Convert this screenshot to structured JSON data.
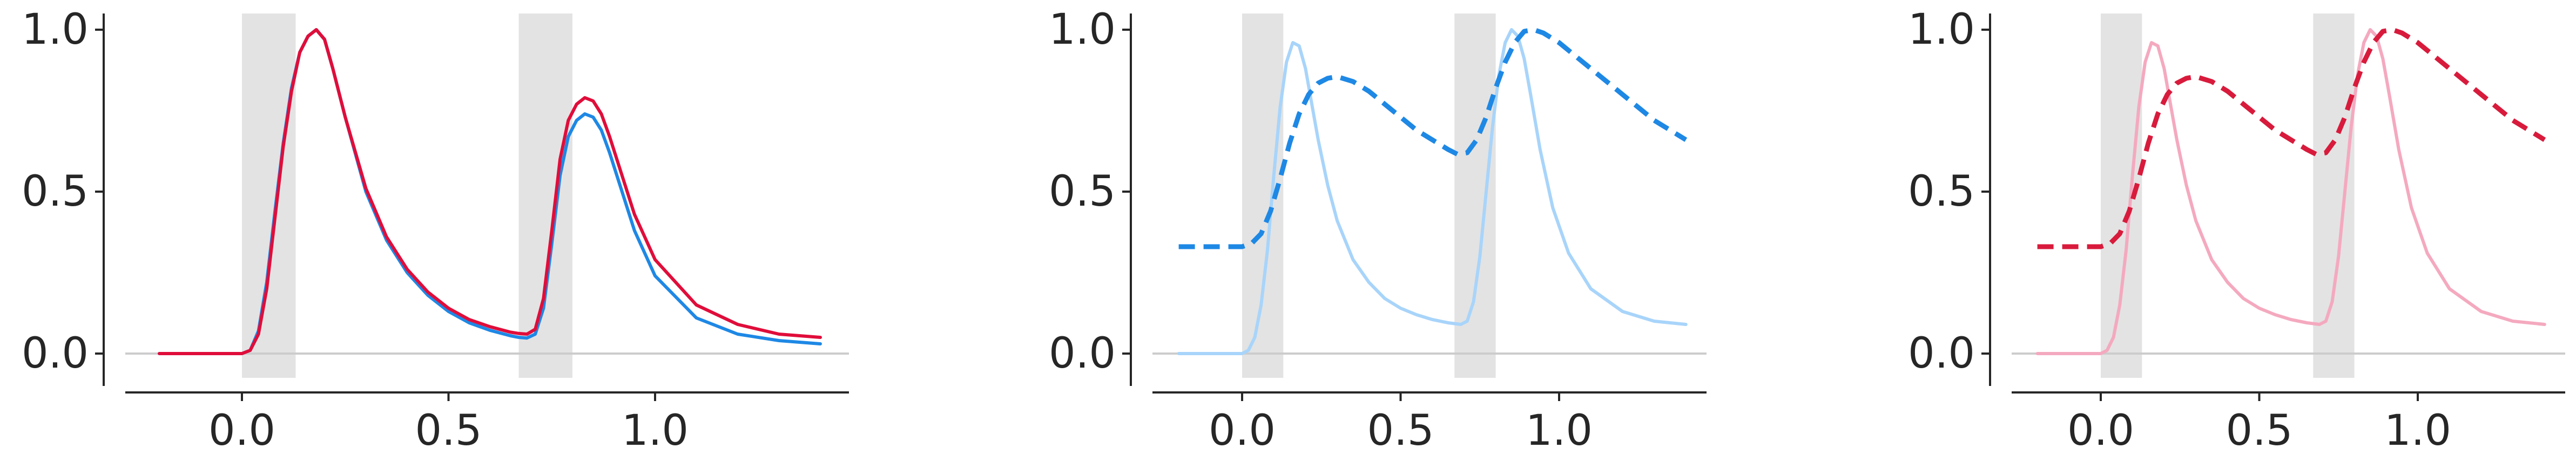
{
  "chart_data": [
    {
      "type": "line",
      "xlim": [
        -0.28,
        1.48
      ],
      "ylim": [
        -0.1,
        1.05
      ],
      "x_ticks": [
        "0.0",
        "0.5",
        "1.0"
      ],
      "y_ticks": [
        "0.0",
        "0.5",
        "1.0"
      ],
      "shaded_regions": [
        [
          0.0,
          0.13
        ],
        [
          0.67,
          0.8
        ]
      ],
      "series": [
        {
          "color": "#1e88e5",
          "style": "solid",
          "x": [
            -0.2,
            -0.1,
            0.0,
            0.02,
            0.04,
            0.06,
            0.08,
            0.1,
            0.12,
            0.14,
            0.16,
            0.18,
            0.2,
            0.22,
            0.25,
            0.3,
            0.35,
            0.4,
            0.45,
            0.5,
            0.55,
            0.6,
            0.65,
            0.67,
            0.69,
            0.71,
            0.73,
            0.75,
            0.77,
            0.79,
            0.81,
            0.83,
            0.85,
            0.87,
            0.89,
            0.92,
            0.95,
            1.0,
            1.1,
            1.2,
            1.3,
            1.4
          ],
          "y": [
            0,
            0,
            0,
            0.01,
            0.07,
            0.22,
            0.44,
            0.65,
            0.82,
            0.93,
            0.98,
            1.0,
            0.97,
            0.88,
            0.73,
            0.5,
            0.35,
            0.25,
            0.18,
            0.13,
            0.095,
            0.072,
            0.055,
            0.05,
            0.048,
            0.06,
            0.14,
            0.34,
            0.55,
            0.67,
            0.72,
            0.74,
            0.73,
            0.69,
            0.62,
            0.5,
            0.38,
            0.24,
            0.11,
            0.06,
            0.04,
            0.03
          ]
        },
        {
          "color": "#e00d3a",
          "style": "solid",
          "x": [
            -0.2,
            -0.1,
            0.0,
            0.02,
            0.04,
            0.06,
            0.08,
            0.1,
            0.12,
            0.14,
            0.16,
            0.18,
            0.2,
            0.22,
            0.25,
            0.3,
            0.35,
            0.4,
            0.45,
            0.5,
            0.55,
            0.6,
            0.65,
            0.67,
            0.69,
            0.71,
            0.73,
            0.75,
            0.77,
            0.79,
            0.81,
            0.83,
            0.85,
            0.87,
            0.89,
            0.92,
            0.95,
            1.0,
            1.1,
            1.2,
            1.3,
            1.4
          ],
          "y": [
            0,
            0,
            0,
            0.01,
            0.06,
            0.2,
            0.42,
            0.64,
            0.81,
            0.93,
            0.98,
            1.0,
            0.97,
            0.88,
            0.73,
            0.51,
            0.36,
            0.26,
            0.19,
            0.14,
            0.105,
            0.083,
            0.066,
            0.062,
            0.06,
            0.075,
            0.17,
            0.38,
            0.6,
            0.72,
            0.77,
            0.79,
            0.78,
            0.74,
            0.67,
            0.55,
            0.43,
            0.29,
            0.15,
            0.09,
            0.06,
            0.05
          ]
        }
      ]
    },
    {
      "type": "line",
      "xlim": [
        -0.28,
        1.48
      ],
      "ylim": [
        -0.1,
        1.05
      ],
      "x_ticks": [
        "0.0",
        "0.5",
        "1.0"
      ],
      "y_ticks": [
        "0.0",
        "0.5",
        "1.0"
      ],
      "shaded_regions": [
        [
          0.0,
          0.13
        ],
        [
          0.67,
          0.8
        ]
      ],
      "series": [
        {
          "color": "#a8d4fa",
          "style": "solid",
          "x": [
            -0.2,
            -0.1,
            0.0,
            0.02,
            0.04,
            0.06,
            0.08,
            0.1,
            0.12,
            0.14,
            0.16,
            0.18,
            0.2,
            0.22,
            0.24,
            0.27,
            0.3,
            0.35,
            0.4,
            0.45,
            0.5,
            0.55,
            0.6,
            0.65,
            0.69,
            0.71,
            0.73,
            0.75,
            0.77,
            0.79,
            0.81,
            0.83,
            0.85,
            0.87,
            0.89,
            0.91,
            0.94,
            0.98,
            1.03,
            1.1,
            1.2,
            1.3,
            1.4
          ],
          "y": [
            0,
            0,
            0,
            0.01,
            0.05,
            0.15,
            0.32,
            0.55,
            0.76,
            0.9,
            0.96,
            0.95,
            0.88,
            0.77,
            0.66,
            0.52,
            0.41,
            0.29,
            0.22,
            0.17,
            0.14,
            0.12,
            0.105,
            0.095,
            0.09,
            0.1,
            0.16,
            0.3,
            0.5,
            0.7,
            0.86,
            0.96,
            1.0,
            0.98,
            0.91,
            0.8,
            0.63,
            0.45,
            0.31,
            0.2,
            0.13,
            0.1,
            0.09
          ]
        },
        {
          "color": "#1e88e5",
          "style": "dashed",
          "x": [
            -0.2,
            -0.1,
            0.0,
            0.03,
            0.06,
            0.09,
            0.12,
            0.15,
            0.18,
            0.21,
            0.24,
            0.27,
            0.3,
            0.35,
            0.4,
            0.45,
            0.5,
            0.55,
            0.6,
            0.65,
            0.68,
            0.71,
            0.74,
            0.77,
            0.8,
            0.83,
            0.86,
            0.89,
            0.92,
            0.95,
            1.0,
            1.05,
            1.1,
            1.2,
            1.3,
            1.4
          ],
          "y": [
            0.33,
            0.33,
            0.33,
            0.34,
            0.37,
            0.44,
            0.54,
            0.65,
            0.74,
            0.8,
            0.835,
            0.85,
            0.855,
            0.84,
            0.81,
            0.77,
            0.73,
            0.69,
            0.66,
            0.63,
            0.615,
            0.62,
            0.66,
            0.73,
            0.82,
            0.9,
            0.96,
            0.995,
            1.0,
            0.99,
            0.96,
            0.92,
            0.88,
            0.8,
            0.72,
            0.66
          ]
        }
      ]
    },
    {
      "type": "line",
      "xlim": [
        -0.28,
        1.48
      ],
      "ylim": [
        -0.1,
        1.05
      ],
      "x_ticks": [
        "0.0",
        "0.5",
        "1.0"
      ],
      "y_ticks": [
        "0.0",
        "0.5",
        "1.0"
      ],
      "shaded_regions": [
        [
          0.0,
          0.13
        ],
        [
          0.67,
          0.8
        ]
      ],
      "series": [
        {
          "color": "#f4a9bf",
          "style": "solid",
          "x": [
            -0.2,
            -0.1,
            0.0,
            0.02,
            0.04,
            0.06,
            0.08,
            0.1,
            0.12,
            0.14,
            0.16,
            0.18,
            0.2,
            0.22,
            0.24,
            0.27,
            0.3,
            0.35,
            0.4,
            0.45,
            0.5,
            0.55,
            0.6,
            0.65,
            0.69,
            0.71,
            0.73,
            0.75,
            0.77,
            0.79,
            0.81,
            0.83,
            0.85,
            0.87,
            0.89,
            0.91,
            0.94,
            0.98,
            1.03,
            1.1,
            1.2,
            1.3,
            1.4
          ],
          "y": [
            0,
            0,
            0,
            0.01,
            0.05,
            0.15,
            0.32,
            0.55,
            0.76,
            0.9,
            0.96,
            0.95,
            0.88,
            0.77,
            0.66,
            0.52,
            0.41,
            0.29,
            0.22,
            0.17,
            0.14,
            0.12,
            0.105,
            0.095,
            0.09,
            0.1,
            0.16,
            0.3,
            0.5,
            0.7,
            0.86,
            0.96,
            1.0,
            0.98,
            0.91,
            0.8,
            0.63,
            0.45,
            0.31,
            0.2,
            0.13,
            0.1,
            0.09
          ]
        },
        {
          "color": "#d81b3c",
          "style": "dashed",
          "x": [
            -0.2,
            -0.1,
            0.0,
            0.03,
            0.06,
            0.09,
            0.12,
            0.15,
            0.18,
            0.21,
            0.24,
            0.27,
            0.3,
            0.35,
            0.4,
            0.45,
            0.5,
            0.55,
            0.6,
            0.65,
            0.68,
            0.71,
            0.74,
            0.77,
            0.8,
            0.83,
            0.86,
            0.89,
            0.92,
            0.95,
            1.0,
            1.05,
            1.1,
            1.2,
            1.3,
            1.4
          ],
          "y": [
            0.33,
            0.33,
            0.33,
            0.34,
            0.37,
            0.44,
            0.54,
            0.65,
            0.74,
            0.8,
            0.835,
            0.85,
            0.855,
            0.84,
            0.81,
            0.77,
            0.73,
            0.69,
            0.66,
            0.63,
            0.615,
            0.62,
            0.66,
            0.73,
            0.82,
            0.9,
            0.96,
            0.995,
            1.0,
            0.99,
            0.96,
            0.92,
            0.88,
            0.8,
            0.72,
            0.66
          ]
        }
      ]
    }
  ]
}
